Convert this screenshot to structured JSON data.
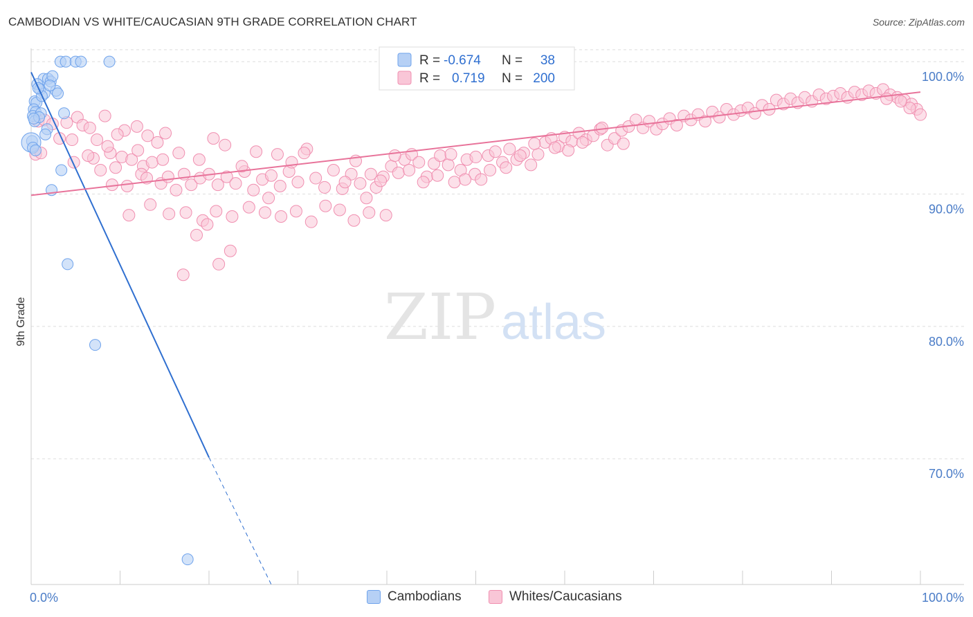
{
  "title": "CAMBODIAN VS WHITE/CAUCASIAN 9TH GRADE CORRELATION CHART",
  "source": "Source: ZipAtlas.com",
  "watermark": {
    "zip": "ZIP",
    "atlas": "atlas"
  },
  "colors": {
    "blue": "#6fa3ec",
    "blue_fill": "#b6d0f5",
    "blue_line": "#2f6fd0",
    "pink": "#f08fb0",
    "pink_fill": "#f9c6d7",
    "pink_line": "#e8739a",
    "axis_text": "#4a7cc7",
    "grid": "#dddddd"
  },
  "legend": {
    "rows": [
      {
        "r_label": "R =",
        "r_value": "-0.674",
        "n_label": "N =",
        "n_value": "38"
      },
      {
        "r_label": "R =",
        "r_value": "0.719",
        "n_label": "N =",
        "n_value": "200"
      }
    ]
  },
  "bottom_legend": [
    "Cambodians",
    "Whites/Caucasians"
  ],
  "chart_data": {
    "type": "scatter",
    "title": "CAMBODIAN VS WHITE/CAUCASIAN 9TH GRADE CORRELATION CHART",
    "xlabel": "",
    "ylabel": "9th Grade",
    "xlim": [
      0,
      100
    ],
    "ylim": [
      60.5,
      101
    ],
    "x_tick_labels": [
      "0.0%",
      "100.0%"
    ],
    "y_ticks": [
      70,
      80,
      90,
      100
    ],
    "y_tick_labels": [
      "70.0%",
      "80.0%",
      "90.0%",
      "100.0%"
    ],
    "grid": true,
    "legend_position": "top-center",
    "series": [
      {
        "name": "Cambodians",
        "r": -0.674,
        "n": 38,
        "trend": {
          "x0": 0,
          "y0": 99.2,
          "x1": 20,
          "y1": 70.1,
          "dash_to_x": 27,
          "dash_to_y": 60.5
        },
        "points": [
          [
            3.3,
            100
          ],
          [
            3.9,
            100
          ],
          [
            5.0,
            100
          ],
          [
            5.6,
            100
          ],
          [
            8.8,
            100
          ],
          [
            1.4,
            98.7
          ],
          [
            1.9,
            98.7
          ],
          [
            2.2,
            98.5
          ],
          [
            2.4,
            98.9
          ],
          [
            0.7,
            98.3
          ],
          [
            1.0,
            97.9
          ],
          [
            1.5,
            97.6
          ],
          [
            2.8,
            97.8
          ],
          [
            3.0,
            97.6
          ],
          [
            0.4,
            97.0
          ],
          [
            0.6,
            96.9
          ],
          [
            0.3,
            96.4
          ],
          [
            0.5,
            96.2
          ],
          [
            0.2,
            95.9
          ],
          [
            0.4,
            95.5
          ],
          [
            1.1,
            96.1
          ],
          [
            3.7,
            96.1
          ],
          [
            0.9,
            95.8
          ],
          [
            0.3,
            95.7
          ],
          [
            1.8,
            94.9
          ],
          [
            1.6,
            94.5
          ],
          [
            0.1,
            94.0
          ],
          [
            0.0,
            93.9
          ],
          [
            0.2,
            93.5
          ],
          [
            0.5,
            93.3
          ],
          [
            3.4,
            91.8
          ],
          [
            2.3,
            90.3
          ],
          [
            4.1,
            84.7
          ],
          [
            7.2,
            78.6
          ],
          [
            17.6,
            62.4
          ],
          [
            1.2,
            97.4
          ],
          [
            2.1,
            98.2
          ],
          [
            0.8,
            98.0
          ]
        ]
      },
      {
        "name": "Whites/Caucasians",
        "r": 0.719,
        "n": 200,
        "trend": {
          "x0": 0,
          "y0": 89.9,
          "x1": 100,
          "y1": 97.7
        },
        "points": [
          [
            0.5,
            93.0
          ],
          [
            0.8,
            95.5
          ],
          [
            1.5,
            95.6
          ],
          [
            2.4,
            95.3
          ],
          [
            4.0,
            95.4
          ],
          [
            3.2,
            94.2
          ],
          [
            5.2,
            95.8
          ],
          [
            5.8,
            95.2
          ],
          [
            4.6,
            94.1
          ],
          [
            6.6,
            95.0
          ],
          [
            7.4,
            94.1
          ],
          [
            8.3,
            95.9
          ],
          [
            7.0,
            92.7
          ],
          [
            8.9,
            93.1
          ],
          [
            9.5,
            92.0
          ],
          [
            10.2,
            92.8
          ],
          [
            11.3,
            92.6
          ],
          [
            12.0,
            93.3
          ],
          [
            12.6,
            92.1
          ],
          [
            13.6,
            92.4
          ],
          [
            14.2,
            93.9
          ],
          [
            14.8,
            92.6
          ],
          [
            9.1,
            90.7
          ],
          [
            10.8,
            90.6
          ],
          [
            12.4,
            91.5
          ],
          [
            13.0,
            91.2
          ],
          [
            14.6,
            90.8
          ],
          [
            15.4,
            91.3
          ],
          [
            16.3,
            90.3
          ],
          [
            17.2,
            91.5
          ],
          [
            18.0,
            90.7
          ],
          [
            19.0,
            91.2
          ],
          [
            20.0,
            91.5
          ],
          [
            21.0,
            90.7
          ],
          [
            22.0,
            91.3
          ],
          [
            23.0,
            90.8
          ],
          [
            24.0,
            91.7
          ],
          [
            25.0,
            90.3
          ],
          [
            26.0,
            91.1
          ],
          [
            27.0,
            91.4
          ],
          [
            28.0,
            90.6
          ],
          [
            29.0,
            91.7
          ],
          [
            30.0,
            90.9
          ],
          [
            31.0,
            93.4
          ],
          [
            32.0,
            91.2
          ],
          [
            33.0,
            90.5
          ],
          [
            34.0,
            91.8
          ],
          [
            35.0,
            90.4
          ],
          [
            36.0,
            91.5
          ],
          [
            37.0,
            90.8
          ],
          [
            11.0,
            88.4
          ],
          [
            13.4,
            89.2
          ],
          [
            15.5,
            88.5
          ],
          [
            17.4,
            88.6
          ],
          [
            19.3,
            88.0
          ],
          [
            20.8,
            88.7
          ],
          [
            22.6,
            88.3
          ],
          [
            24.5,
            89.0
          ],
          [
            26.3,
            88.6
          ],
          [
            28.1,
            88.3
          ],
          [
            29.8,
            88.7
          ],
          [
            31.5,
            87.9
          ],
          [
            33.1,
            89.1
          ],
          [
            34.7,
            88.8
          ],
          [
            36.3,
            88.0
          ],
          [
            38.0,
            88.6
          ],
          [
            39.9,
            88.4
          ],
          [
            18.6,
            86.9
          ],
          [
            19.8,
            87.7
          ],
          [
            22.4,
            85.7
          ],
          [
            21.1,
            84.7
          ],
          [
            17.1,
            83.9
          ],
          [
            38.2,
            91.5
          ],
          [
            38.8,
            90.5
          ],
          [
            39.6,
            91.3
          ],
          [
            40.5,
            92.1
          ],
          [
            41.3,
            91.6
          ],
          [
            42.0,
            92.6
          ],
          [
            42.8,
            93.0
          ],
          [
            43.6,
            92.4
          ],
          [
            44.5,
            91.3
          ],
          [
            45.3,
            92.3
          ],
          [
            46.0,
            92.9
          ],
          [
            46.9,
            92.2
          ],
          [
            47.6,
            90.9
          ],
          [
            48.3,
            91.8
          ],
          [
            49.0,
            92.6
          ],
          [
            49.9,
            91.5
          ],
          [
            50.6,
            91.1
          ],
          [
            51.4,
            92.9
          ],
          [
            52.2,
            93.2
          ],
          [
            53.0,
            92.4
          ],
          [
            53.8,
            93.4
          ],
          [
            54.6,
            92.6
          ],
          [
            55.4,
            93.1
          ],
          [
            56.2,
            92.2
          ],
          [
            57.0,
            93.0
          ],
          [
            57.8,
            93.9
          ],
          [
            58.5,
            94.2
          ],
          [
            59.3,
            93.6
          ],
          [
            60.0,
            94.3
          ],
          [
            60.8,
            94.0
          ],
          [
            61.6,
            94.6
          ],
          [
            62.4,
            94.1
          ],
          [
            63.2,
            94.4
          ],
          [
            64.0,
            94.9
          ],
          [
            64.8,
            93.7
          ],
          [
            65.6,
            94.2
          ],
          [
            66.4,
            94.8
          ],
          [
            67.2,
            95.1
          ],
          [
            68.0,
            95.6
          ],
          [
            68.8,
            95.0
          ],
          [
            69.5,
            95.5
          ],
          [
            70.3,
            94.9
          ],
          [
            71.0,
            95.3
          ],
          [
            71.8,
            95.7
          ],
          [
            72.6,
            95.2
          ],
          [
            73.4,
            95.9
          ],
          [
            74.2,
            95.6
          ],
          [
            75.0,
            96.0
          ],
          [
            75.8,
            95.5
          ],
          [
            76.6,
            96.2
          ],
          [
            77.4,
            95.8
          ],
          [
            78.2,
            96.4
          ],
          [
            79.0,
            96.0
          ],
          [
            79.8,
            96.3
          ],
          [
            80.6,
            96.5
          ],
          [
            81.4,
            96.1
          ],
          [
            82.2,
            96.7
          ],
          [
            83.0,
            96.4
          ],
          [
            83.8,
            97.1
          ],
          [
            84.6,
            96.8
          ],
          [
            85.4,
            97.2
          ],
          [
            86.2,
            96.9
          ],
          [
            87.0,
            97.3
          ],
          [
            87.8,
            97.0
          ],
          [
            88.6,
            97.5
          ],
          [
            89.4,
            97.2
          ],
          [
            90.2,
            97.4
          ],
          [
            91.0,
            97.6
          ],
          [
            91.8,
            97.3
          ],
          [
            92.6,
            97.7
          ],
          [
            93.4,
            97.5
          ],
          [
            94.2,
            97.8
          ],
          [
            95.0,
            97.6
          ],
          [
            95.8,
            97.9
          ],
          [
            96.6,
            97.5
          ],
          [
            97.4,
            97.3
          ],
          [
            98.2,
            97.1
          ],
          [
            99.0,
            96.8
          ],
          [
            99.6,
            96.4
          ],
          [
            100.0,
            96.0
          ],
          [
            98.8,
            96.5
          ],
          [
            97.8,
            97.0
          ],
          [
            96.2,
            97.2
          ],
          [
            64.2,
            95.0
          ],
          [
            66.6,
            93.8
          ],
          [
            62.0,
            93.9
          ],
          [
            60.4,
            93.3
          ],
          [
            58.9,
            93.5
          ],
          [
            56.6,
            93.8
          ],
          [
            55.0,
            92.9
          ],
          [
            53.4,
            92.0
          ],
          [
            51.6,
            91.8
          ],
          [
            50.0,
            92.8
          ],
          [
            48.8,
            91.1
          ],
          [
            47.2,
            93.0
          ],
          [
            45.7,
            91.4
          ],
          [
            44.1,
            90.9
          ],
          [
            42.5,
            91.8
          ],
          [
            40.9,
            92.9
          ],
          [
            39.3,
            91.0
          ],
          [
            37.7,
            89.7
          ],
          [
            36.5,
            92.5
          ],
          [
            35.3,
            90.9
          ],
          [
            30.7,
            93.1
          ],
          [
            29.3,
            92.4
          ],
          [
            27.7,
            93.0
          ],
          [
            26.7,
            89.7
          ],
          [
            25.3,
            93.2
          ],
          [
            23.7,
            92.1
          ],
          [
            21.8,
            93.7
          ],
          [
            20.5,
            94.2
          ],
          [
            18.9,
            92.6
          ],
          [
            16.6,
            93.1
          ],
          [
            15.1,
            94.6
          ],
          [
            13.1,
            94.4
          ],
          [
            11.9,
            95.1
          ],
          [
            10.5,
            94.8
          ],
          [
            9.7,
            94.5
          ],
          [
            8.6,
            93.6
          ],
          [
            7.8,
            91.8
          ],
          [
            6.4,
            92.9
          ],
          [
            4.8,
            92.4
          ],
          [
            1.1,
            93.1
          ]
        ]
      }
    ]
  }
}
